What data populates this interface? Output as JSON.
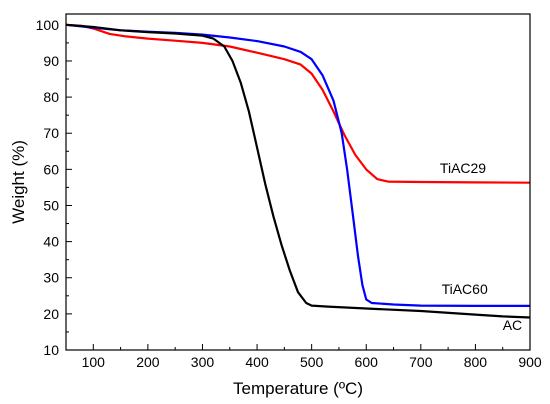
{
  "chart_data": {
    "type": "line",
    "xlabel": "Temperature (ºC)",
    "ylabel": "Weight (%)",
    "xlim": [
      50,
      900
    ],
    "ylim": [
      10,
      103
    ],
    "x_ticks": [
      100,
      200,
      300,
      400,
      500,
      600,
      700,
      800,
      900
    ],
    "y_ticks": [
      10,
      20,
      30,
      40,
      50,
      60,
      70,
      80,
      90,
      100
    ],
    "grid": false,
    "series": [
      {
        "name": "TiAC29",
        "color": "#ff0000",
        "label_at": [
          735,
          59
        ],
        "points": [
          [
            50,
            100
          ],
          [
            80,
            99.7
          ],
          [
            100,
            99
          ],
          [
            130,
            97.5
          ],
          [
            160,
            96.8
          ],
          [
            200,
            96.2
          ],
          [
            250,
            95.6
          ],
          [
            300,
            95
          ],
          [
            350,
            94
          ],
          [
            400,
            92.3
          ],
          [
            450,
            90.5
          ],
          [
            480,
            89
          ],
          [
            500,
            86.5
          ],
          [
            520,
            82
          ],
          [
            540,
            76
          ],
          [
            560,
            69.5
          ],
          [
            580,
            64
          ],
          [
            600,
            60
          ],
          [
            620,
            57.3
          ],
          [
            640,
            56.6
          ],
          [
            700,
            56.5
          ],
          [
            800,
            56.4
          ],
          [
            900,
            56.3
          ]
        ]
      },
      {
        "name": "TiAC60",
        "color": "#0000ff",
        "label_at": [
          738,
          25.5
        ],
        "points": [
          [
            50,
            100
          ],
          [
            100,
            99.2
          ],
          [
            150,
            98.5
          ],
          [
            200,
            98.1
          ],
          [
            250,
            97.8
          ],
          [
            300,
            97.3
          ],
          [
            350,
            96.5
          ],
          [
            400,
            95.5
          ],
          [
            450,
            94
          ],
          [
            480,
            92.5
          ],
          [
            500,
            90.5
          ],
          [
            520,
            86
          ],
          [
            540,
            79
          ],
          [
            555,
            70
          ],
          [
            565,
            60
          ],
          [
            575,
            48
          ],
          [
            585,
            36
          ],
          [
            593,
            28
          ],
          [
            600,
            24
          ],
          [
            610,
            23
          ],
          [
            650,
            22.6
          ],
          [
            700,
            22.3
          ],
          [
            800,
            22.2
          ],
          [
            900,
            22.2
          ]
        ]
      },
      {
        "name": "AC",
        "color": "#000000",
        "label_at": [
          850,
          15.5
        ],
        "points": [
          [
            50,
            100
          ],
          [
            100,
            99.4
          ],
          [
            150,
            98.5
          ],
          [
            200,
            98
          ],
          [
            250,
            97.6
          ],
          [
            300,
            97
          ],
          [
            320,
            96.2
          ],
          [
            340,
            94
          ],
          [
            355,
            90
          ],
          [
            370,
            84
          ],
          [
            385,
            76
          ],
          [
            400,
            66
          ],
          [
            415,
            56
          ],
          [
            430,
            47
          ],
          [
            445,
            39
          ],
          [
            460,
            32
          ],
          [
            475,
            26
          ],
          [
            490,
            23
          ],
          [
            500,
            22.3
          ],
          [
            530,
            22
          ],
          [
            600,
            21.5
          ],
          [
            700,
            20.8
          ],
          [
            800,
            19.8
          ],
          [
            850,
            19.3
          ],
          [
            900,
            19
          ]
        ]
      }
    ]
  }
}
